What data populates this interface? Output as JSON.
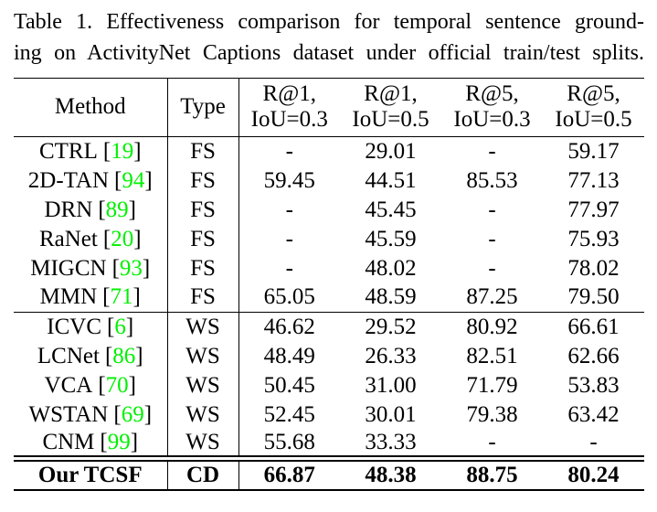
{
  "colors": {
    "citation": "#00f000",
    "text": "#000000",
    "background": "#ffffff"
  },
  "punct": {
    "open": "[",
    "close": "]"
  },
  "caption": {
    "line1": "Table 1. Effectiveness comparison for temporal sentence ground-",
    "line2": "ing on ActivityNet Captions dataset under official train/test splits."
  },
  "table": {
    "header": {
      "method": "Method",
      "type": "Type",
      "metrics": [
        {
          "line1": "R@1,",
          "line2": "IoU=0.3"
        },
        {
          "line1": "R@1,",
          "line2": "IoU=0.5"
        },
        {
          "line1": "R@5,",
          "line2": "IoU=0.3"
        },
        {
          "line1": "R@5,",
          "line2": "IoU=0.5"
        }
      ]
    },
    "groups": [
      {
        "rows": [
          {
            "name": "CTRL",
            "cite": "19",
            "type": "FS",
            "values": [
              "-",
              "29.01",
              "-",
              "59.17"
            ]
          },
          {
            "name": "2D-TAN",
            "cite": "94",
            "type": "FS",
            "values": [
              "59.45",
              "44.51",
              "85.53",
              "77.13"
            ]
          },
          {
            "name": "DRN",
            "cite": "89",
            "type": "FS",
            "values": [
              "-",
              "45.45",
              "-",
              "77.97"
            ]
          },
          {
            "name": "RaNet",
            "cite": "20",
            "type": "FS",
            "values": [
              "-",
              "45.59",
              "-",
              "75.93"
            ]
          },
          {
            "name": "MIGCN",
            "cite": "93",
            "type": "FS",
            "values": [
              "-",
              "48.02",
              "-",
              "78.02"
            ]
          },
          {
            "name": "MMN",
            "cite": "71",
            "type": "FS",
            "values": [
              "65.05",
              "48.59",
              "87.25",
              "79.50"
            ]
          }
        ]
      },
      {
        "rows": [
          {
            "name": "ICVC",
            "cite": "6",
            "type": "WS",
            "values": [
              "46.62",
              "29.52",
              "80.92",
              "66.61"
            ]
          },
          {
            "name": "LCNet",
            "cite": "86",
            "type": "WS",
            "values": [
              "48.49",
              "26.33",
              "82.51",
              "62.66"
            ]
          },
          {
            "name": "VCA",
            "cite": "70",
            "type": "WS",
            "values": [
              "50.45",
              "31.00",
              "71.79",
              "53.83"
            ]
          },
          {
            "name": "WSTAN",
            "cite": "69",
            "type": "WS",
            "values": [
              "52.45",
              "30.01",
              "79.38",
              "63.42"
            ]
          },
          {
            "name": "CNM",
            "cite": "99",
            "type": "WS",
            "values": [
              "55.68",
              "33.33",
              "-",
              "-"
            ]
          }
        ]
      }
    ],
    "final_row": {
      "method": "Our TCSF",
      "type": "CD",
      "values": [
        "66.87",
        "48.38",
        "88.75",
        "80.24"
      ]
    }
  }
}
